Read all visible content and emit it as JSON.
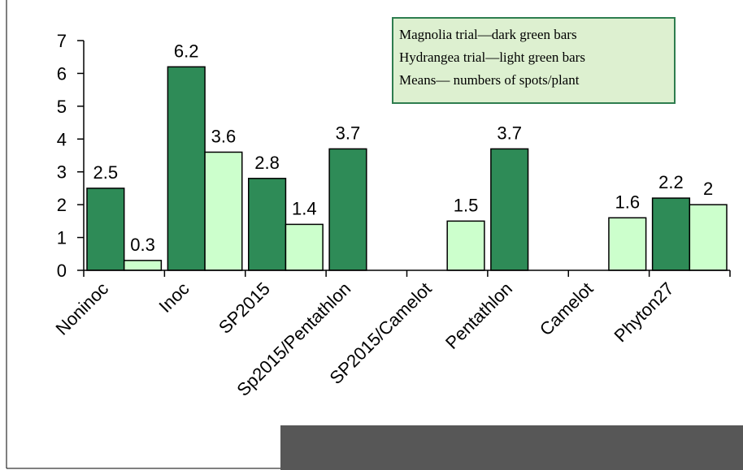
{
  "chart_data": {
    "type": "bar",
    "categories": [
      "Noninoc",
      "Inoc",
      "SP2015",
      "Sp2015/Pentathlon",
      "SP2015/Camelot",
      "Pentathlon",
      "Camelot",
      "Phyton27"
    ],
    "series": [
      {
        "color": "#2e8b57",
        "values": [
          2.5,
          6.2,
          2.8,
          3.7,
          null,
          3.7,
          null,
          2.2
        ]
      },
      {
        "color": "#ccffcc",
        "values": [
          0.3,
          3.6,
          1.4,
          null,
          1.5,
          null,
          1.6,
          2
        ]
      }
    ],
    "ylim": [
      0,
      7
    ],
    "yticks": [
      0,
      1,
      2,
      3,
      4,
      5,
      6,
      7
    ],
    "legend_text": [
      "Magnolia trial—dark green bars",
      "Hydrangea trial—light green bars",
      "Means— numbers of spots/plant"
    ]
  }
}
